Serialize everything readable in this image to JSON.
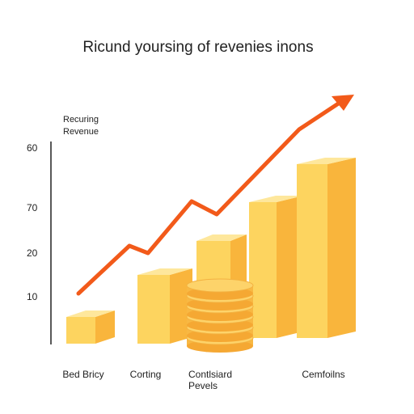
{
  "title": "Ricund yoursing of revenies inons",
  "axis_label": [
    "Recuring",
    "Revenue"
  ],
  "y_labels": [
    "60",
    "70",
    "20",
    "10"
  ],
  "categories": [
    [
      "Bed Bricy"
    ],
    [
      "Corting"
    ],
    [
      "Contlsiard",
      "Pevels"
    ],
    [
      "Cemfoilns"
    ]
  ]
}
